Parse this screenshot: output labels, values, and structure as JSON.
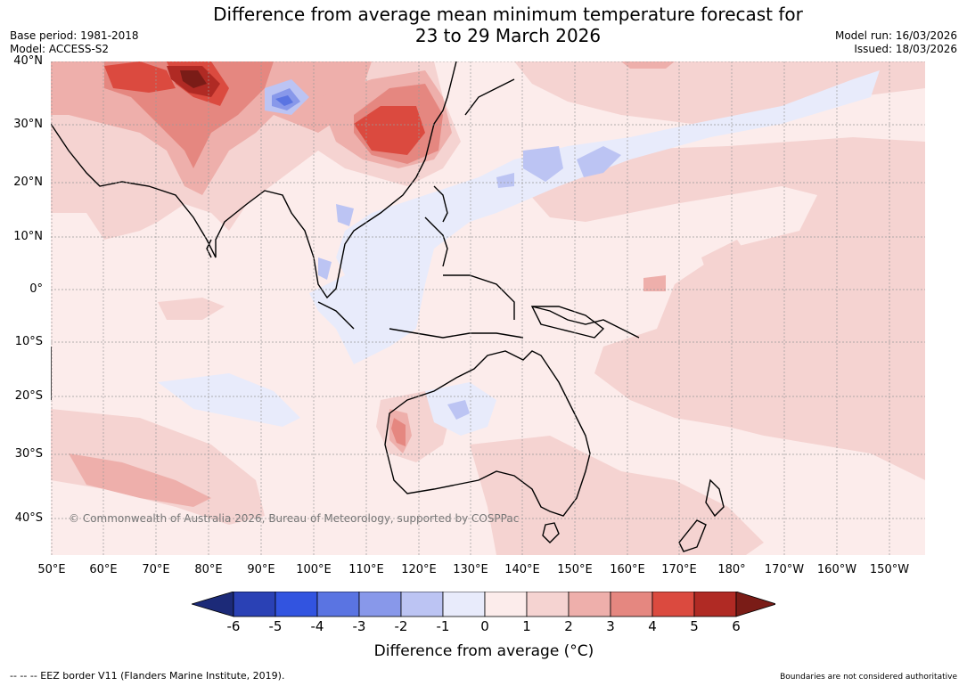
{
  "title": {
    "line1": "Difference from average mean minimum temperature forecast for",
    "line2": "23 to 29 March 2026"
  },
  "meta_left": {
    "base_period": "Base period: 1981-2018",
    "model": "Model: ACCESS-S2"
  },
  "meta_right": {
    "model_run": "Model run: 16/03/2026",
    "issued": "Issued: 18/03/2026"
  },
  "map": {
    "latitudes": [
      "40°N",
      "30°N",
      "20°N",
      "10°N",
      "0°",
      "10°S",
      "20°S",
      "30°S",
      "40°S"
    ],
    "longitudes": [
      "50°E",
      "60°E",
      "70°E",
      "80°E",
      "90°E",
      "100°E",
      "110°E",
      "120°E",
      "130°E",
      "140°E",
      "150°E",
      "160°E",
      "170°E",
      "180°",
      "170°W",
      "160°W",
      "150°W"
    ],
    "copyright": "© Commonwealth of Australia 2026, Bureau of Meteorology, supported by COSPPac"
  },
  "colorbar": {
    "ticks": [
      "-6",
      "-5",
      "-4",
      "-3",
      "-2",
      "-1",
      "0",
      "1",
      "2",
      "3",
      "4",
      "5",
      "6"
    ],
    "colors": [
      "#1c2a78",
      "#2a41b5",
      "#3254e0",
      "#5a74e2",
      "#8898ea",
      "#bcc4f3",
      "#e8ebfb",
      "#fceceb",
      "#f5d3d1",
      "#eeafab",
      "#e58780",
      "#db4a3f",
      "#b02a24",
      "#7a1c17"
    ],
    "label": "Difference from average (°C)"
  },
  "footer": {
    "left": "--  --  -- EEZ border V11 (Flanders Marine Institute, 2019).",
    "right": "Boundaries are not considered authoritative"
  }
}
